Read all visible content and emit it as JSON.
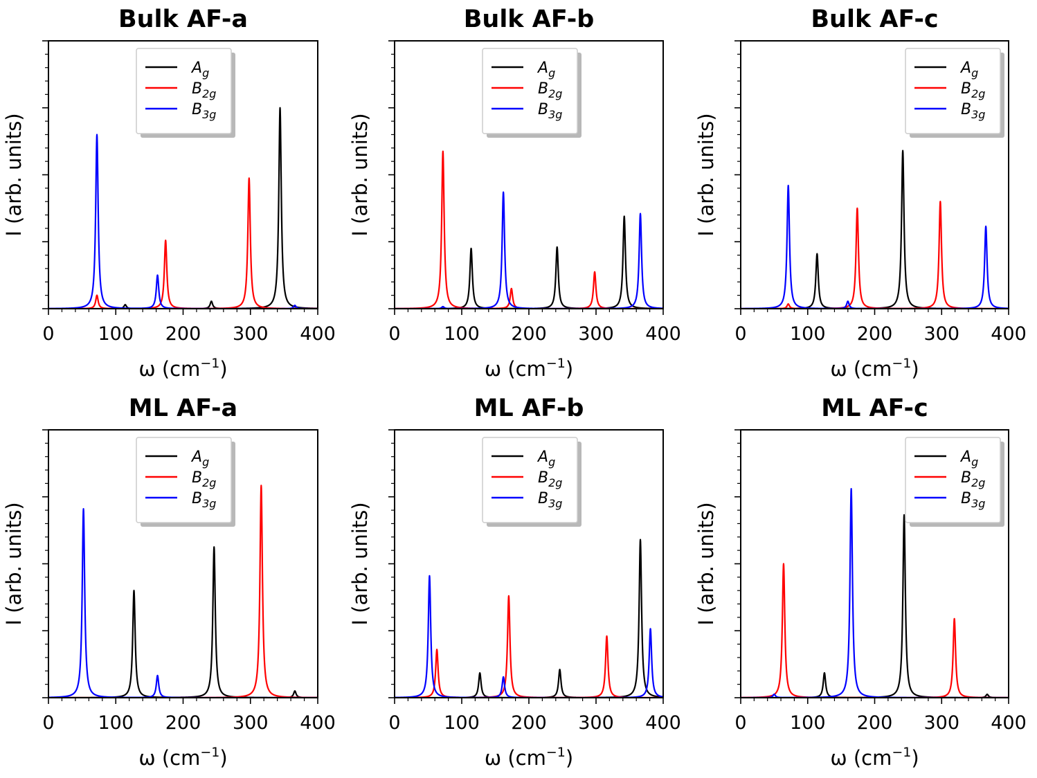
{
  "colors": {
    "A_g": "#000000",
    "B_2g": "#ff0000",
    "B_3g": "#0000ff"
  },
  "chart_data": [
    {
      "type": "line",
      "title": "Bulk AF-a",
      "xlabel": "ω (cm",
      "xlabel_sup": "−1",
      "xlabel_end": ")",
      "ylabel": "I (arb. units)",
      "xlim": [
        0,
        400
      ],
      "ylim": [
        0,
        4
      ],
      "xticks": [
        "0",
        "100",
        "200",
        "300",
        "400"
      ],
      "legend": {
        "position": "top-center",
        "entries": [
          {
            "main": "A",
            "sub": "g"
          },
          {
            "main": "B",
            "sub": "2g"
          },
          {
            "main": "B",
            "sub": "3g"
          }
        ]
      },
      "series": [
        {
          "name": "Ag",
          "color": "#000000",
          "peaks": [
            {
              "x": 114,
              "h": 0.06
            },
            {
              "x": 242,
              "h": 0.11
            },
            {
              "x": 344,
              "h": 3.0
            }
          ]
        },
        {
          "name": "B2g",
          "color": "#ff0000",
          "peaks": [
            {
              "x": 72,
              "h": 0.2
            },
            {
              "x": 174,
              "h": 1.02
            },
            {
              "x": 298,
              "h": 1.95
            }
          ]
        },
        {
          "name": "B3g",
          "color": "#0000ff",
          "peaks": [
            {
              "x": 72,
              "h": 2.6
            },
            {
              "x": 162,
              "h": 0.5
            },
            {
              "x": 366,
              "h": 0.05
            }
          ]
        }
      ]
    },
    {
      "type": "line",
      "title": "Bulk AF-b",
      "xlabel": "ω (cm",
      "xlabel_sup": "−1",
      "xlabel_end": ")",
      "ylabel": "I (arb. units)",
      "xlim": [
        0,
        400
      ],
      "ylim": [
        0,
        4
      ],
      "xticks": [
        "0",
        "100",
        "200",
        "300",
        "400"
      ],
      "legend": {
        "position": "top-center",
        "entries": [
          {
            "main": "A",
            "sub": "g"
          },
          {
            "main": "B",
            "sub": "2g"
          },
          {
            "main": "B",
            "sub": "3g"
          }
        ]
      },
      "series": [
        {
          "name": "Ag",
          "color": "#000000",
          "peaks": [
            {
              "x": 114,
              "h": 0.9
            },
            {
              "x": 242,
              "h": 0.92
            },
            {
              "x": 342,
              "h": 1.38
            }
          ]
        },
        {
          "name": "B2g",
          "color": "#ff0000",
          "peaks": [
            {
              "x": 72,
              "h": 2.35
            },
            {
              "x": 174,
              "h": 0.3
            },
            {
              "x": 298,
              "h": 0.55
            }
          ]
        },
        {
          "name": "B3g",
          "color": "#0000ff",
          "peaks": [
            {
              "x": 72,
              "h": 0.03
            },
            {
              "x": 162,
              "h": 1.74
            },
            {
              "x": 366,
              "h": 1.42
            }
          ]
        }
      ]
    },
    {
      "type": "line",
      "title": "Bulk AF-c",
      "xlabel": "ω (cm",
      "xlabel_sup": "−1",
      "xlabel_end": ")",
      "ylabel": "I (arb. units)",
      "xlim": [
        0,
        400
      ],
      "ylim": [
        0,
        4
      ],
      "xticks": [
        "0",
        "100",
        "200",
        "300",
        "400"
      ],
      "legend": {
        "position": "top-right",
        "entries": [
          {
            "main": "A",
            "sub": "g"
          },
          {
            "main": "B",
            "sub": "2g"
          },
          {
            "main": "B",
            "sub": "3g"
          }
        ]
      },
      "series": [
        {
          "name": "Ag",
          "color": "#000000",
          "peaks": [
            {
              "x": 114,
              "h": 0.82
            },
            {
              "x": 242,
              "h": 2.36
            }
          ]
        },
        {
          "name": "B2g",
          "color": "#ff0000",
          "peaks": [
            {
              "x": 71,
              "h": 0.07
            },
            {
              "x": 174,
              "h": 1.5
            },
            {
              "x": 298,
              "h": 1.6
            }
          ]
        },
        {
          "name": "B3g",
          "color": "#0000ff",
          "peaks": [
            {
              "x": 71,
              "h": 1.84
            },
            {
              "x": 160,
              "h": 0.11
            },
            {
              "x": 366,
              "h": 1.23
            }
          ]
        }
      ]
    },
    {
      "type": "line",
      "title": "ML AF-a",
      "xlabel": "ω (cm",
      "xlabel_sup": "−1",
      "xlabel_end": ")",
      "ylabel": "I (arb. units)",
      "xlim": [
        0,
        400
      ],
      "ylim": [
        0,
        4
      ],
      "xticks": [
        "0",
        "100",
        "200",
        "300",
        "400"
      ],
      "legend": {
        "position": "top-center",
        "entries": [
          {
            "main": "A",
            "sub": "g"
          },
          {
            "main": "B",
            "sub": "2g"
          },
          {
            "main": "B",
            "sub": "3g"
          }
        ]
      },
      "series": [
        {
          "name": "Ag",
          "color": "#000000",
          "peaks": [
            {
              "x": 127,
              "h": 1.6
            },
            {
              "x": 246,
              "h": 2.25
            },
            {
              "x": 366,
              "h": 0.1
            }
          ]
        },
        {
          "name": "B2g",
          "color": "#ff0000",
          "peaks": [
            {
              "x": 316,
              "h": 3.17
            }
          ]
        },
        {
          "name": "B3g",
          "color": "#0000ff",
          "peaks": [
            {
              "x": 52,
              "h": 2.82
            },
            {
              "x": 162,
              "h": 0.33
            }
          ]
        }
      ]
    },
    {
      "type": "line",
      "title": "ML AF-b",
      "xlabel": "ω (cm",
      "xlabel_sup": "−1",
      "xlabel_end": ")",
      "ylabel": "I (arb. units)",
      "xlim": [
        0,
        400
      ],
      "ylim": [
        0,
        4
      ],
      "xticks": [
        "0",
        "100",
        "200",
        "300",
        "400"
      ],
      "legend": {
        "position": "top-center",
        "entries": [
          {
            "main": "A",
            "sub": "g"
          },
          {
            "main": "B",
            "sub": "2g"
          },
          {
            "main": "B",
            "sub": "3g"
          }
        ]
      },
      "series": [
        {
          "name": "Ag",
          "color": "#000000",
          "peaks": [
            {
              "x": 127,
              "h": 0.37
            },
            {
              "x": 246,
              "h": 0.42
            },
            {
              "x": 366,
              "h": 2.36
            }
          ]
        },
        {
          "name": "B2g",
          "color": "#ff0000",
          "peaks": [
            {
              "x": 63,
              "h": 0.72
            },
            {
              "x": 170,
              "h": 1.52
            },
            {
              "x": 316,
              "h": 0.92
            }
          ]
        },
        {
          "name": "B3g",
          "color": "#0000ff",
          "peaks": [
            {
              "x": 52,
              "h": 1.82
            },
            {
              "x": 162,
              "h": 0.31
            },
            {
              "x": 381,
              "h": 1.03
            }
          ]
        }
      ]
    },
    {
      "type": "line",
      "title": "ML AF-c",
      "xlabel": "ω (cm",
      "xlabel_sup": "−1",
      "xlabel_end": ")",
      "ylabel": "I (arb. units)",
      "xlim": [
        0,
        400
      ],
      "ylim": [
        0,
        4
      ],
      "xticks": [
        "0",
        "100",
        "200",
        "300",
        "400"
      ],
      "legend": {
        "position": "top-right",
        "entries": [
          {
            "main": "A",
            "sub": "g"
          },
          {
            "main": "B",
            "sub": "2g"
          },
          {
            "main": "B",
            "sub": "3g"
          }
        ]
      },
      "series": [
        {
          "name": "Ag",
          "color": "#000000",
          "peaks": [
            {
              "x": 125,
              "h": 0.37
            },
            {
              "x": 244,
              "h": 2.73
            },
            {
              "x": 368,
              "h": 0.05
            }
          ]
        },
        {
          "name": "B2g",
          "color": "#ff0000",
          "peaks": [
            {
              "x": 64,
              "h": 2.0
            },
            {
              "x": 319,
              "h": 1.18
            }
          ]
        },
        {
          "name": "B3g",
          "color": "#0000ff",
          "peaks": [
            {
              "x": 50,
              "h": 0.05
            },
            {
              "x": 165,
              "h": 3.12
            }
          ]
        }
      ]
    }
  ]
}
